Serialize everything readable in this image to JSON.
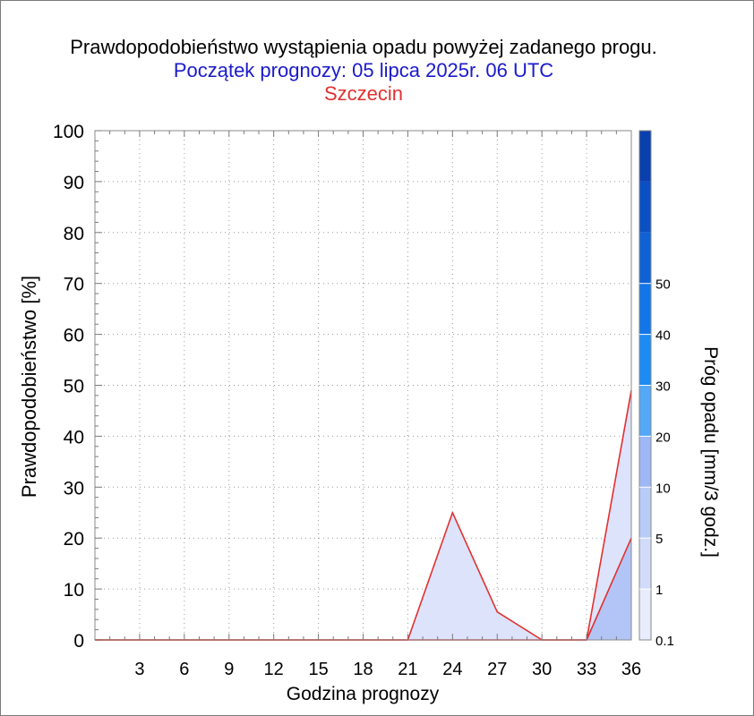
{
  "title": "Prawdopodobieństwo wystąpienia opadu powyżej zadanego progu.",
  "subtitle": "Początek prognozy: 05 lipca 2025r. 06 UTC",
  "location": "Szczecin",
  "colors": {
    "title": "#000000",
    "subtitle": "#1a1acc",
    "location": "#e23030",
    "line": "#e23030",
    "fill_threshold_0_1": "#dde3fb",
    "fill_threshold_1": "#b3c5f7"
  },
  "chart_data": {
    "type": "area",
    "xlabel": "Godzina prognozy",
    "ylabel": "Prawdopodobieństwo [%]",
    "x": [
      0,
      3,
      6,
      9,
      12,
      15,
      18,
      21,
      24,
      27,
      30,
      33,
      36
    ],
    "x_ticks": [
      "3",
      "6",
      "9",
      "12",
      "15",
      "18",
      "21",
      "24",
      "27",
      "30",
      "33",
      "36"
    ],
    "y_ticks": [
      "0",
      "10",
      "20",
      "30",
      "40",
      "50",
      "60",
      "70",
      "80",
      "90",
      "100"
    ],
    "xlim": [
      0,
      36
    ],
    "ylim": [
      0,
      100
    ],
    "grid": true,
    "series": [
      {
        "threshold": 0.1,
        "values": [
          0,
          0,
          0,
          0,
          0,
          0,
          0,
          0,
          25,
          5.5,
          0,
          0,
          49
        ]
      },
      {
        "threshold": 1,
        "values": [
          0,
          0,
          0,
          0,
          0,
          0,
          0,
          0,
          0,
          0,
          0,
          0,
          20
        ]
      }
    ],
    "colorbar": {
      "label": "Próg opadu [mm/3 godz.]",
      "levels": [
        "0.1",
        "1",
        "5",
        "10",
        "20",
        "30",
        "40",
        "50"
      ],
      "colors": [
        "#e8ecfc",
        "#d2dcfa",
        "#b9cbf7",
        "#9db8f4",
        "#54a8f7",
        "#1c8cf4",
        "#1276ea",
        "#0f62d6",
        "#0b4fc4",
        "#0a3fb0"
      ]
    }
  }
}
